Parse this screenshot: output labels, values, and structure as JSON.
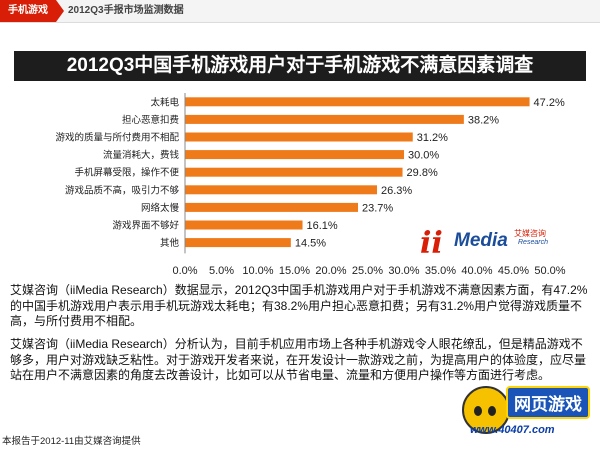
{
  "header": {
    "tag_label": "手机游戏",
    "section_label": "2012Q3手报市场监测数据"
  },
  "title": "2012Q3中国手机游戏用户对于手机游戏不满意因素调查",
  "colors": {
    "bar": "#ef7a1a",
    "title_bg": "#1d1d1d",
    "accent_red": "#d81e06"
  },
  "chart_data": {
    "type": "bar",
    "orientation": "horizontal",
    "categories": [
      "太耗电",
      "担心恶意扣费",
      "游戏的质量与所付费用不相配",
      "流量消耗大，费钱",
      "手机屏幕受限，操作不便",
      "游戏品质不高，吸引力不够",
      "网络太慢",
      "游戏界面不够好",
      "其他"
    ],
    "values": [
      47.2,
      38.2,
      31.2,
      30.0,
      29.8,
      26.3,
      23.7,
      16.1,
      14.5
    ],
    "value_labels": [
      "47.2%",
      "38.2%",
      "31.2%",
      "30.0%",
      "29.8%",
      "26.3%",
      "23.7%",
      "16.1%",
      "14.5%"
    ],
    "xlim": [
      0,
      50
    ],
    "xticks": [
      "0.0%",
      "5.0%",
      "10.0%",
      "15.0%",
      "20.0%",
      "25.0%",
      "30.0%",
      "35.0%",
      "40.0%",
      "45.0%",
      "50.0%"
    ],
    "grid": false,
    "legend": "none"
  },
  "logo": {
    "mark": "ii",
    "name": "Media",
    "cn": "艾媒咨询",
    "en": "Research"
  },
  "paragraphs": [
    "艾媒咨询（iiMedia Research）数据显示，2012Q3中国手机游戏用户对于手机游戏不满意因素方面，有47.2%的中国手机游戏用户表示用手机玩游戏太耗电；有38.2%用户担心恶意扣费；另有31.2%用户觉得游戏质量不高，与所付费用不相配。",
    "艾媒咨询（iiMedia Research）分析认为，目前手机应用市场上各种手机游戏令人眼花缭乱，但是精品游戏不够多，用户对游戏缺乏粘性。对于游戏开发者来说，在开发设计一款游戏之前，为提高用户的体验度，应尽量站在用户不满意因素的角度去改善设计，比如可以从节省电量、流量和方便用户操作等方面进行考虑。"
  ],
  "footer": "本报告于2012-11由艾媒咨询提供",
  "watermark": {
    "label": "网页游戏",
    "url": "www.40407.com"
  }
}
